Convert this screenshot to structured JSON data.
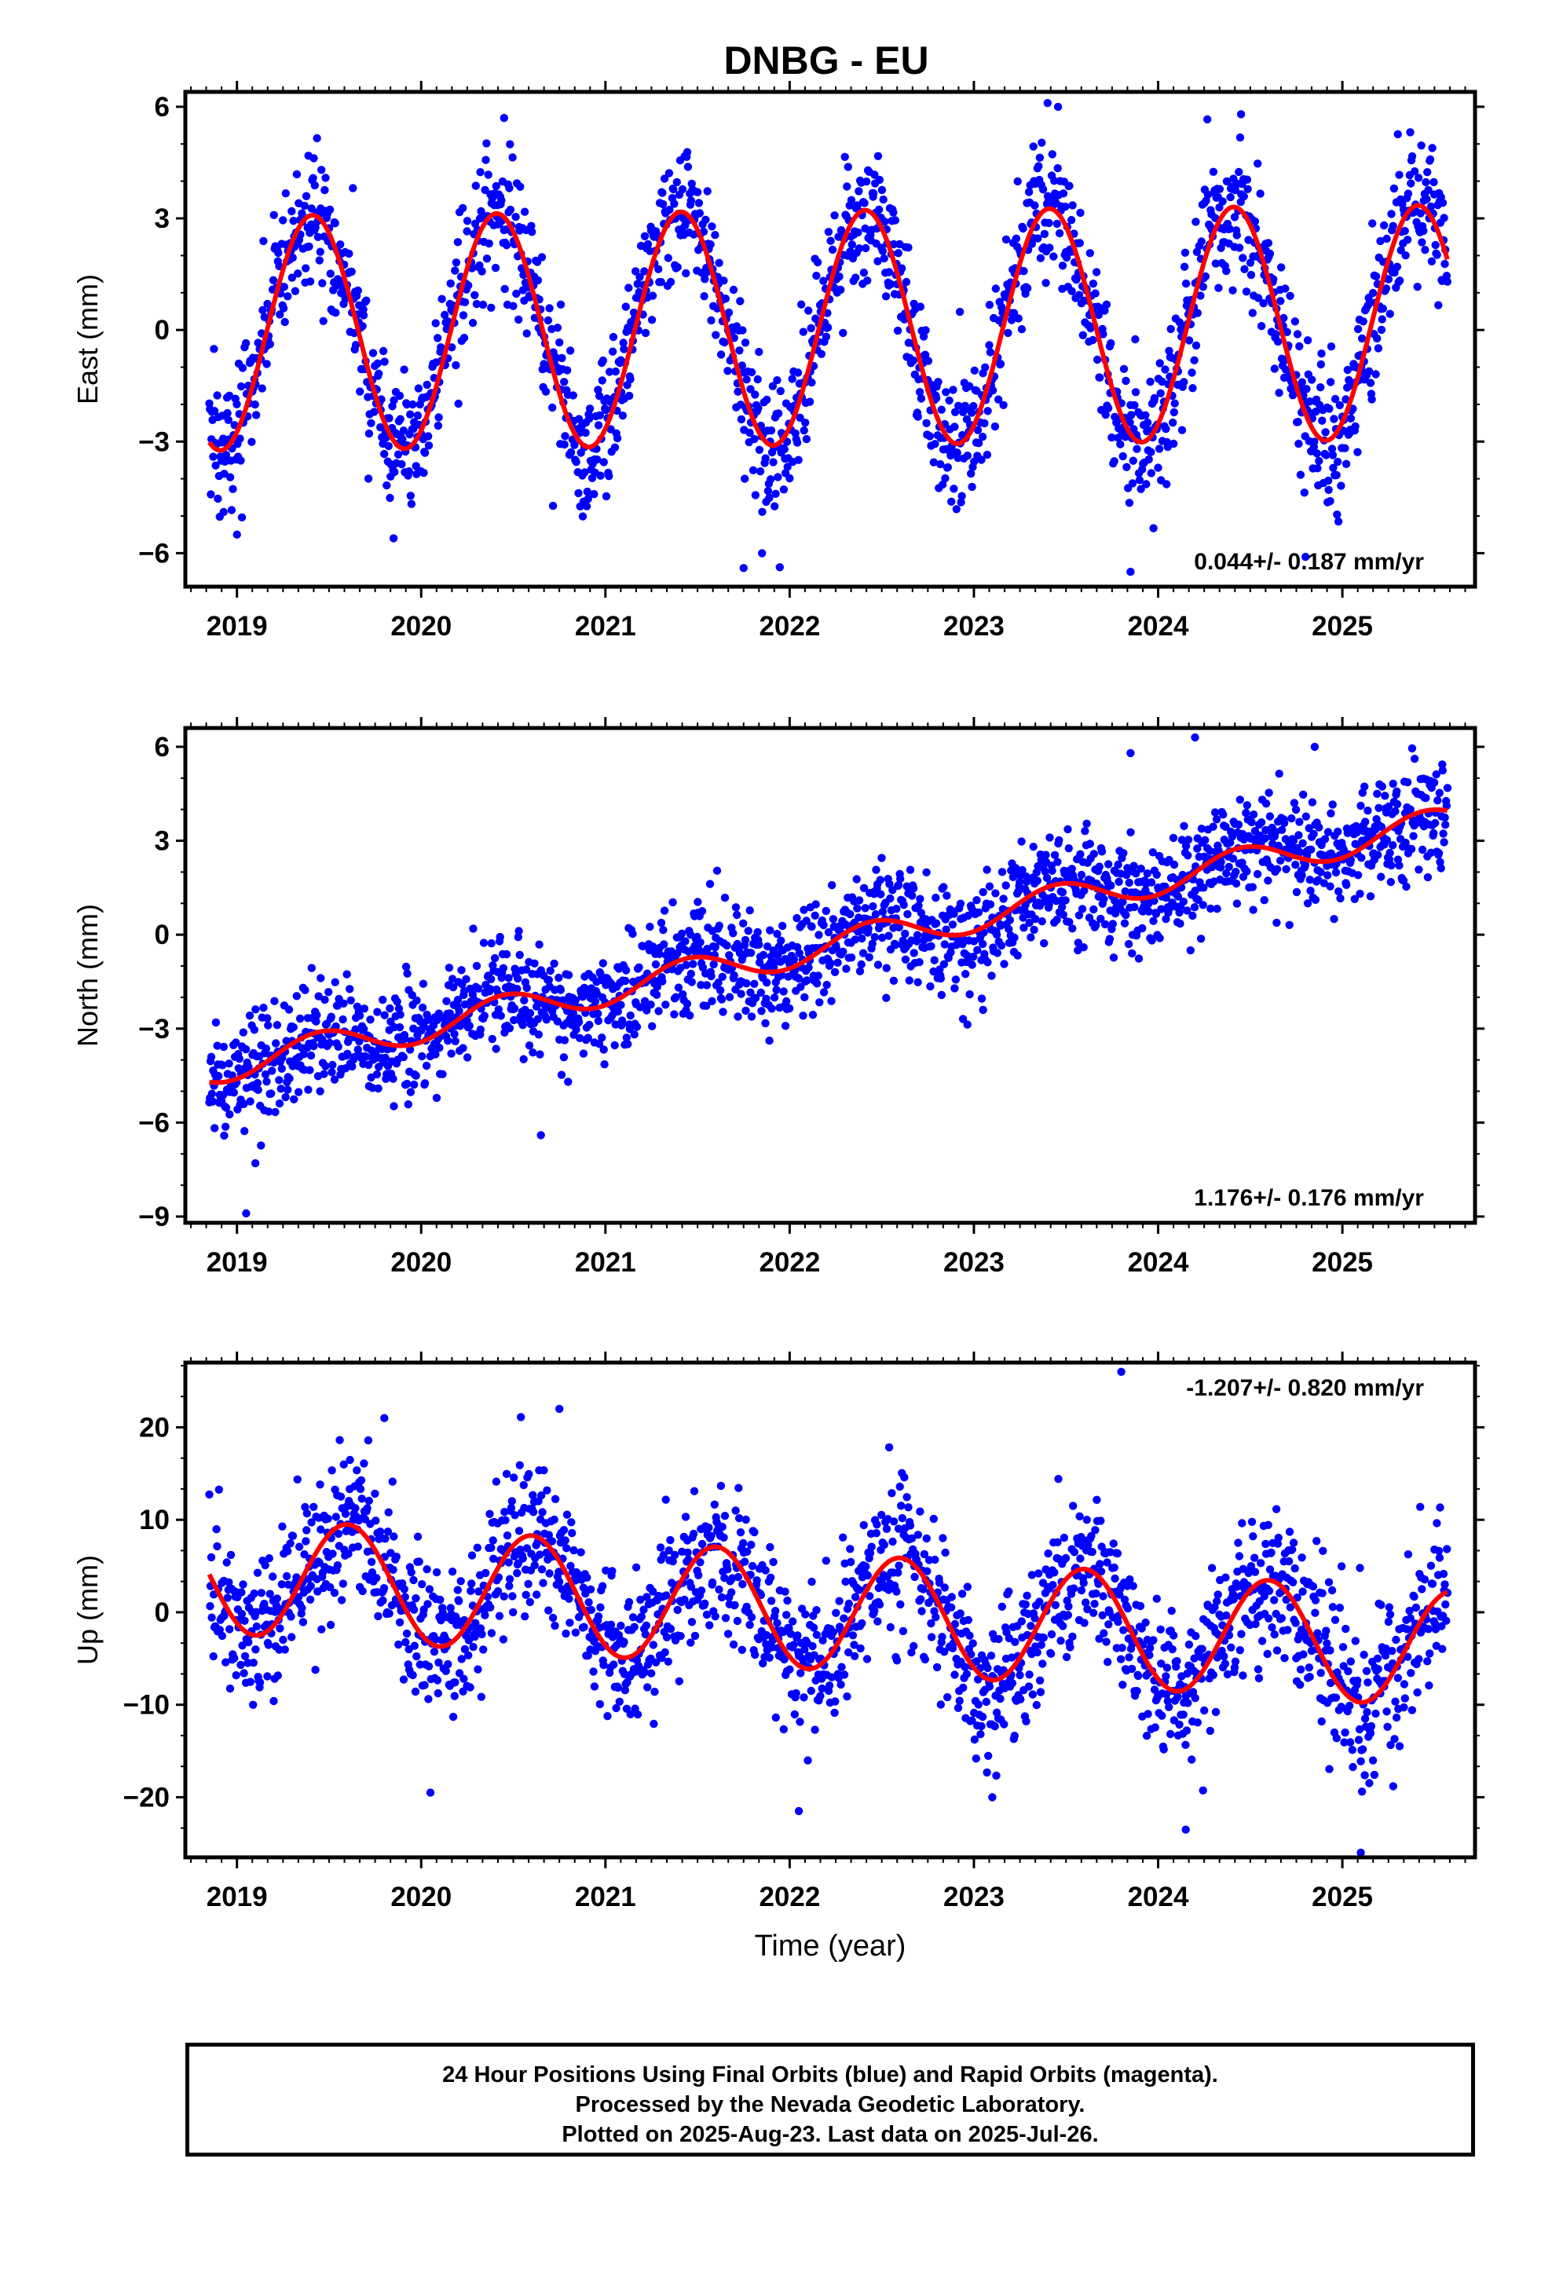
{
  "title": "DNBG - EU",
  "colors": {
    "final_orbit_points": "#0000ff",
    "rapid_orbit_points": "#ff00ff",
    "model_fit": "#ff0000",
    "frame": "#000000"
  },
  "footer": {
    "line1": "24 Hour Positions Using Final Orbits (blue) and Rapid Orbits (magenta).",
    "line2": "Processed by the Nevada Geodetic Laboratory.",
    "line3": "Plotted on 2025-Aug-23. Last data on 2025-Jul-26."
  },
  "chart_data": [
    {
      "type": "scatter",
      "panel": "east",
      "title": "DNBG - EU",
      "xlabel": "",
      "ylabel": "East (mm)",
      "xlim": [
        2018.72,
        2025.72
      ],
      "ylim": [
        -6.9,
        6.4
      ],
      "xticks": [
        2019,
        2020,
        2021,
        2022,
        2023,
        2024,
        2025
      ],
      "yticks": [
        -6,
        -3,
        0,
        3,
        6
      ],
      "grid": false,
      "annotation": "0.044+/- 0.187 mm/yr",
      "annotation_position": "bottom-right",
      "data_range": [
        2018.85,
        2025.57
      ],
      "trend": {
        "rate_mm_per_yr": 0.044,
        "rate_sigma": 0.187,
        "intercept_2022": 0.05
      },
      "seasonal": {
        "amplitude": 3.15,
        "peak_phase_year_fraction": 0.41
      },
      "scatter_sigma": 0.95,
      "outlier_points": [
        [
          2019.0,
          -5.5
        ],
        [
          2019.85,
          -5.6
        ],
        [
          2021.75,
          -6.4
        ],
        [
          2021.85,
          -6.0
        ],
        [
          2023.4,
          6.1
        ],
        [
          2023.85,
          -6.5
        ],
        [
          2024.8,
          -6.1
        ],
        [
          2024.45,
          5.8
        ],
        [
          2020.45,
          5.7
        ]
      ]
    },
    {
      "type": "scatter",
      "panel": "north",
      "xlabel": "",
      "ylabel": "North (mm)",
      "xlim": [
        2018.72,
        2025.72
      ],
      "ylim": [
        -9.2,
        6.6
      ],
      "xticks": [
        2019,
        2020,
        2021,
        2022,
        2023,
        2024,
        2025
      ],
      "yticks": [
        -9,
        -6,
        -3,
        0,
        3,
        6
      ],
      "grid": false,
      "annotation": "1.176+/- 0.176 mm/yr",
      "annotation_position": "bottom-right",
      "data_range": [
        2018.85,
        2025.57
      ],
      "trend": {
        "rate_mm_per_yr": 1.176,
        "rate_sigma": 0.176,
        "intercept_2022": -0.6
      },
      "seasonal": {
        "amplitude": 0.5,
        "peak_phase_year_fraction": 0.45
      },
      "scatter_sigma": 0.85,
      "outlier_points": [
        [
          2019.05,
          -8.9
        ],
        [
          2019.1,
          -7.3
        ],
        [
          2023.05,
          -2.4
        ],
        [
          2024.2,
          6.3
        ],
        [
          2023.85,
          5.8
        ],
        [
          2024.85,
          6.0
        ],
        [
          2020.65,
          -6.4
        ]
      ]
    },
    {
      "type": "scatter",
      "panel": "up",
      "xlabel": "Time (year)",
      "ylabel": "Up (mm)",
      "xlim": [
        2018.72,
        2025.72
      ],
      "ylim": [
        -26.5,
        27
      ],
      "xticks": [
        2019,
        2020,
        2021,
        2022,
        2023,
        2024,
        2025
      ],
      "yticks": [
        -20,
        -10,
        0,
        10,
        20
      ],
      "grid": false,
      "annotation": "-1.207+/- 0.820 mm/yr",
      "annotation_position": "top-right",
      "data_range": [
        2018.85,
        2025.57
      ],
      "trend": {
        "rate_mm_per_yr": -1.207,
        "rate_sigma": 0.82,
        "intercept_2022": 0.3
      },
      "seasonal": {
        "amplitude": 6.3,
        "peak_phase_year_fraction": 0.6
      },
      "scatter_sigma": 4.2,
      "outlier_points": [
        [
          2023.8,
          26.0
        ],
        [
          2019.8,
          21.0
        ],
        [
          2020.75,
          22.0
        ],
        [
          2025.1,
          -26.0
        ],
        [
          2024.15,
          -23.5
        ],
        [
          2020.05,
          -19.5
        ],
        [
          2022.05,
          -21.5
        ],
        [
          2023.1,
          -20.0
        ]
      ]
    }
  ]
}
